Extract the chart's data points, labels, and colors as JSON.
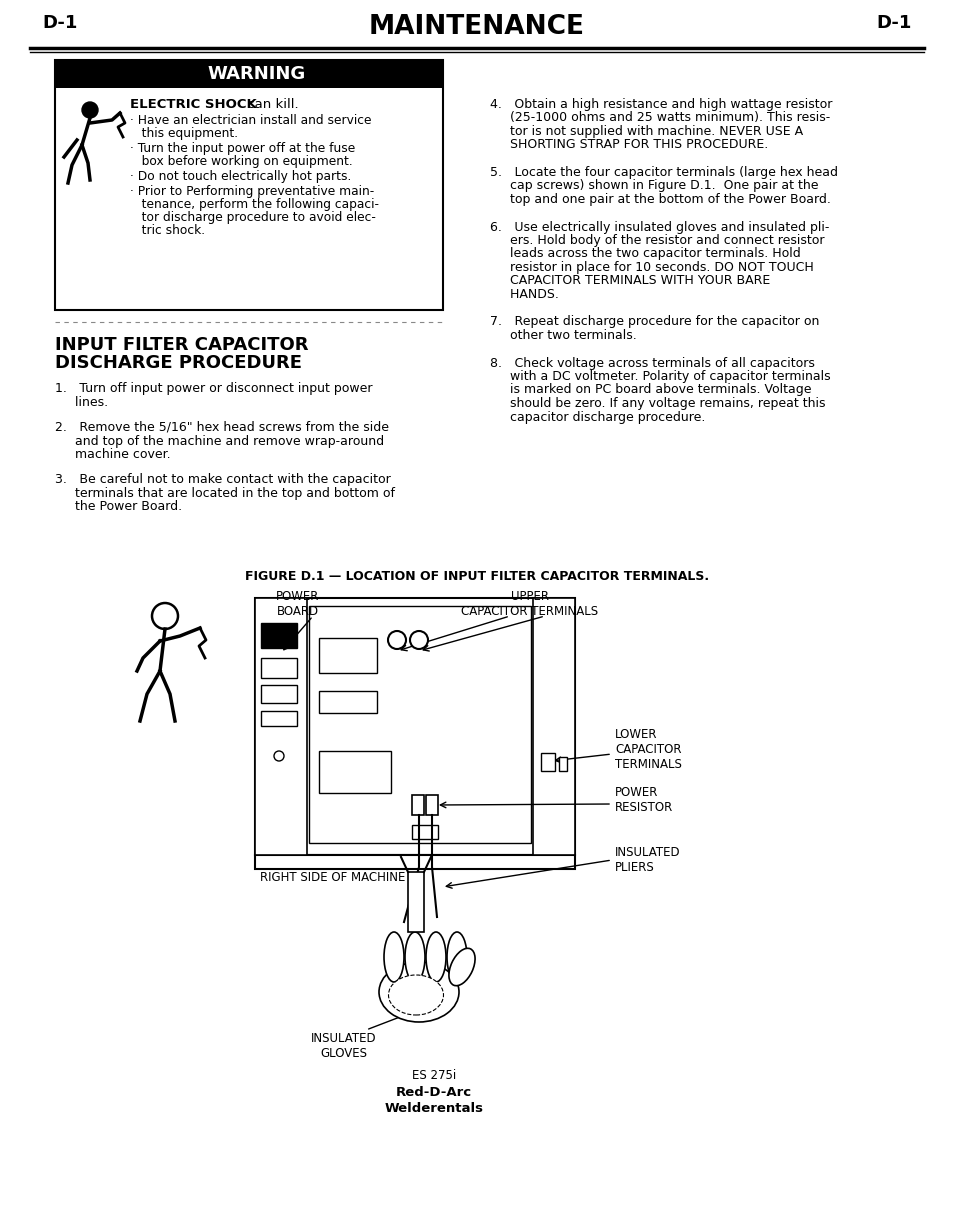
{
  "page_bg": "#ffffff",
  "header_title": "MAINTENANCE",
  "header_left": "D-1",
  "header_right": "D-1",
  "warning_title": "  WARNING",
  "warning_bold": "ELECTRIC SHOCK",
  "warning_bold_suffix": " can kill.",
  "warning_bullets": [
    "· Have an electrician install and service\n   this equipment.",
    "· Turn the input power off at the fuse\n   box before working on equipment.",
    "· Do not touch electrically hot parts.",
    "· Prior to Performing preventative main-\n   tenance, perform the following capaci-\n   tor discharge procedure to avoid elec-\n   tric shock."
  ],
  "section_title_line1": "INPUT FILTER CAPACITOR",
  "section_title_line2": "DISCHARGE PROCEDURE",
  "left_items_text": [
    [
      "1. Turn off input power or disconnect input power",
      "     lines."
    ],
    [
      "2. Remove the 5/16\" hex head screws from the side",
      "     and top of the machine and remove wrap-around",
      "     machine cover."
    ],
    [
      "3. Be careful not to make contact with the capacitor",
      "     terminals that are located in the top and bottom of",
      "     the Power Board."
    ]
  ],
  "right_items_text": [
    [
      "4. Obtain a high resistance and high wattage resistor",
      "     (25-1000 ohms and 25 watts minimum). This resis-",
      "     tor is not supplied with machine. NEVER USE A",
      "     SHORTING STRAP FOR THIS PROCEDURE."
    ],
    [
      "5. Locate the four capacitor terminals (large hex head",
      "     cap screws) shown in Figure D.1.  One pair at the",
      "     top and one pair at the bottom of the Power Board."
    ],
    [
      "6. Use electrically insulated gloves and insulated pli-",
      "     ers. Hold body of the resistor and connect resistor",
      "     leads across the two capacitor terminals. Hold",
      "     resistor in place for 10 seconds. DO NOT TOUCH",
      "     CAPACITOR TERMINALS WITH YOUR BARE",
      "     HANDS."
    ],
    [
      "7. Repeat discharge procedure for the capacitor on",
      "     other two terminals."
    ],
    [
      "8. Check voltage across terminals of all capacitors",
      "     with a DC voltmeter. Polarity of capacitor terminals",
      "     is marked on PC board above terminals. Voltage",
      "     should be zero. If any voltage remains, repeat this",
      "     capacitor discharge procedure."
    ]
  ],
  "figure_caption": "FIGURE D.1 — LOCATION OF INPUT FILTER CAPACITOR TERMINALS.",
  "label_power_board": "POWER\nBOARD",
  "label_upper_cap": "UPPER\nCAPACITOR TERMINALS",
  "label_lower_cap": "LOWER\nCAPACITOR\nTERMINALS",
  "label_power_res": "POWER\nRESISTOR",
  "label_right_side": "RIGHT SIDE OF MACHINE",
  "label_insulated_pliers": "INSULATED\nPLIERS",
  "label_insulated_gloves": "INSULATED\nGLOVES",
  "label_model": "ES 275i",
  "label_brand1": "Red-D-Arc",
  "label_brand2": "Welderentals"
}
